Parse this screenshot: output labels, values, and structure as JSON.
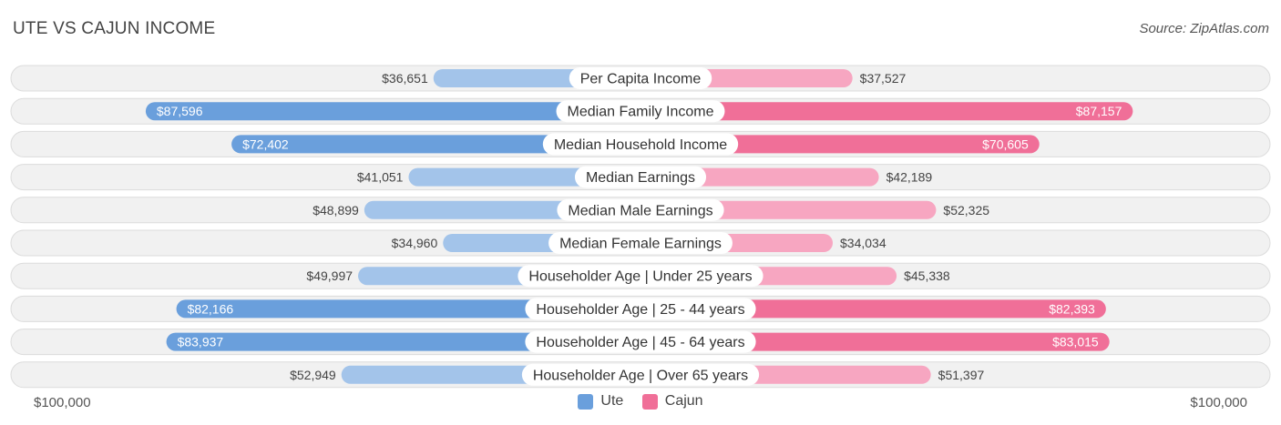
{
  "title": "UTE VS CAJUN INCOME",
  "source": "Source: ZipAtlas.com",
  "colors": {
    "ute_strong": "#6a9fdc",
    "ute_light": "#a3c4ea",
    "cajun_strong": "#f06f98",
    "cajun_light": "#f7a6c1",
    "row_bg": "#f1f1f1",
    "row_border": "#dcdcdc"
  },
  "chart_data": {
    "type": "bar",
    "orientation": "horizontal-diverging",
    "title": "UTE VS CAJUN INCOME",
    "max_value": 100000,
    "axis_left_label": "$100,000",
    "axis_right_label": "$100,000",
    "legend": [
      "Ute",
      "Cajun"
    ],
    "categories": [
      "Per Capita Income",
      "Median Family Income",
      "Median Household Income",
      "Median Earnings",
      "Median Male Earnings",
      "Median Female Earnings",
      "Householder Age | Under 25 years",
      "Householder Age | 25 - 44 years",
      "Householder Age | 45 - 64 years",
      "Householder Age | Over 65 years"
    ],
    "series": [
      {
        "name": "Ute",
        "values": [
          36651,
          87596,
          72402,
          41051,
          48899,
          34960,
          49997,
          82166,
          83937,
          52949
        ],
        "labels": [
          "$36,651",
          "$87,596",
          "$72,402",
          "$41,051",
          "$48,899",
          "$34,960",
          "$49,997",
          "$82,166",
          "$83,937",
          "$52,949"
        ]
      },
      {
        "name": "Cajun",
        "values": [
          37527,
          87157,
          70605,
          42189,
          52325,
          34034,
          45338,
          82393,
          83015,
          51397
        ],
        "labels": [
          "$37,527",
          "$87,157",
          "$70,605",
          "$42,189",
          "$52,325",
          "$34,034",
          "$45,338",
          "$82,393",
          "$83,015",
          "$51,397"
        ]
      }
    ]
  }
}
